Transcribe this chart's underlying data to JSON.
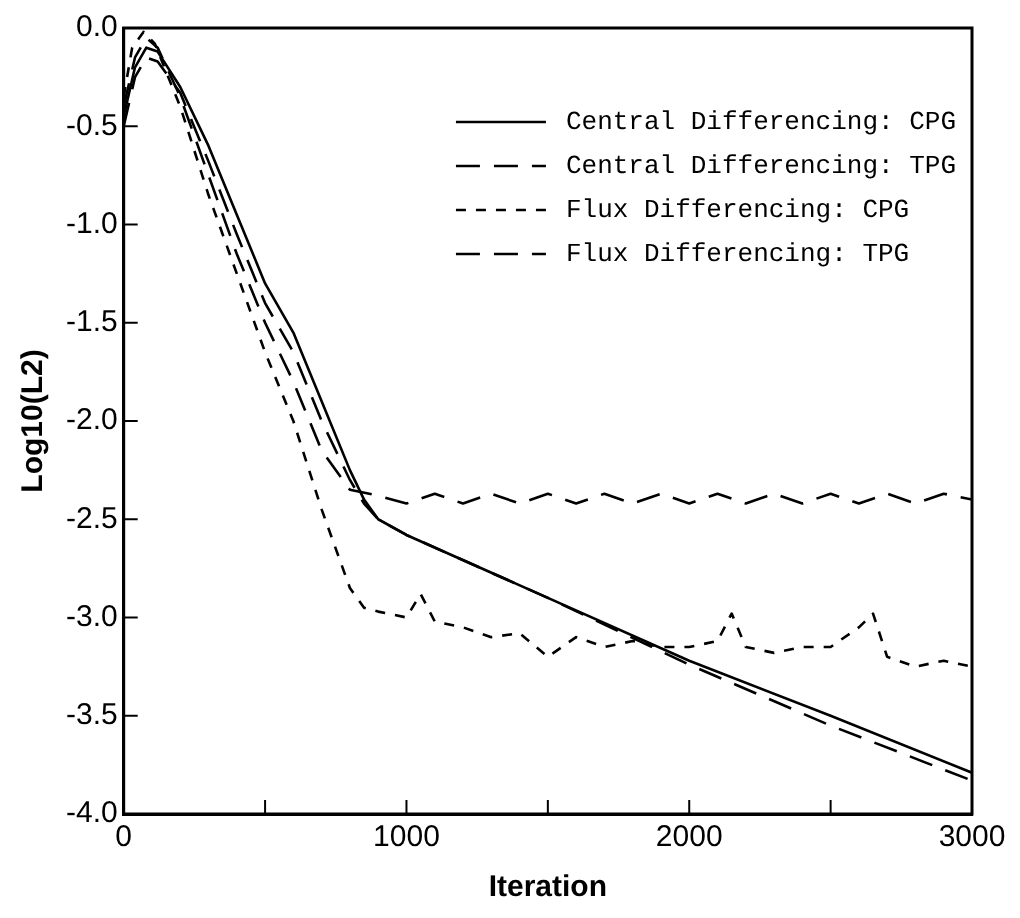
{
  "chart_data": {
    "type": "line",
    "xlabel": "Iteration",
    "ylabel": "Log10(L2)",
    "xlim": [
      0,
      3000
    ],
    "ylim": [
      -4,
      0
    ],
    "xticks": [
      0,
      {
        "value": 500,
        "label": null
      },
      1000,
      {
        "value": 1500,
        "label": null
      },
      2000,
      {
        "value": 2500,
        "label": null
      },
      3000
    ],
    "yticks": [
      {
        "value": -4,
        "label": "-4.0"
      },
      {
        "value": -3.5,
        "label": "-3.5"
      },
      {
        "value": -3,
        "label": "-3.0"
      },
      {
        "value": -2.5,
        "label": "-2.5"
      },
      {
        "value": -2,
        "label": "-2.0"
      },
      {
        "value": -1.5,
        "label": "-1.5"
      },
      {
        "value": -1,
        "label": "-1.0"
      },
      {
        "value": -0.5,
        "label": "-0.5"
      },
      {
        "value": 0,
        "label": "0.0"
      }
    ],
    "grid": false,
    "legend": "top right",
    "marker": "none",
    "series": [
      {
        "name": "Central Differencing: CPG",
        "color": "#000000",
        "line_style": "solid",
        "x": [
          0,
          40,
          80,
          120,
          200,
          300,
          400,
          500,
          600,
          700,
          800,
          850,
          900,
          1000,
          1500,
          2000,
          2500,
          3000
        ],
        "values": [
          -0.45,
          -0.2,
          -0.1,
          -0.12,
          -0.3,
          -0.6,
          -0.95,
          -1.3,
          -1.55,
          -1.9,
          -2.25,
          -2.4,
          -2.5,
          -2.58,
          -2.9,
          -3.22,
          -3.5,
          -3.79
        ]
      },
      {
        "name": "Central Differencing: TPG",
        "color": "#000000",
        "line_style": "dashed",
        "x": [
          0,
          40,
          80,
          120,
          200,
          300,
          400,
          500,
          600,
          700,
          800,
          850,
          900,
          1000,
          1500,
          2000,
          2500,
          3000
        ],
        "values": [
          -0.5,
          -0.25,
          -0.15,
          -0.17,
          -0.33,
          -0.68,
          -1.05,
          -1.4,
          -1.65,
          -2.0,
          -2.3,
          -2.42,
          -2.5,
          -2.58,
          -2.9,
          -3.24,
          -3.55,
          -3.83
        ]
      },
      {
        "name": "Flux Differencing: CPG",
        "color": "#000000",
        "line_style": "dotted",
        "x": [
          0,
          30,
          70,
          110,
          200,
          300,
          400,
          500,
          600,
          700,
          800,
          850,
          900,
          1000,
          1050,
          1100,
          1200,
          1300,
          1400,
          1500,
          1600,
          1700,
          1800,
          1900,
          2000,
          2100,
          2150,
          2200,
          2300,
          2400,
          2500,
          2600,
          2650,
          2700,
          2800,
          2900,
          3000
        ],
        "values": [
          -0.35,
          -0.1,
          -0.02,
          -0.08,
          -0.4,
          -0.85,
          -1.25,
          -1.65,
          -2.0,
          -2.45,
          -2.85,
          -2.95,
          -2.97,
          -3.0,
          -2.88,
          -3.02,
          -3.05,
          -3.1,
          -3.08,
          -3.2,
          -3.1,
          -3.15,
          -3.12,
          -3.15,
          -3.15,
          -3.12,
          -2.98,
          -3.15,
          -3.18,
          -3.15,
          -3.15,
          -3.05,
          -2.98,
          -3.2,
          -3.25,
          -3.22,
          -3.25
        ]
      },
      {
        "name": "Flux Differencing: TPG",
        "color": "#000000",
        "line_style": "dashed",
        "x": [
          0,
          40,
          80,
          120,
          200,
          300,
          400,
          500,
          600,
          700,
          800,
          900,
          1000,
          1100,
          1200,
          1300,
          1400,
          1500,
          1600,
          1700,
          1800,
          1900,
          2000,
          2100,
          2200,
          2300,
          2400,
          2500,
          2600,
          2700,
          2800,
          2900,
          3000
        ],
        "values": [
          -0.4,
          -0.15,
          -0.05,
          -0.1,
          -0.35,
          -0.75,
          -1.15,
          -1.5,
          -1.8,
          -2.15,
          -2.35,
          -2.38,
          -2.42,
          -2.37,
          -2.42,
          -2.37,
          -2.42,
          -2.37,
          -2.42,
          -2.37,
          -2.42,
          -2.37,
          -2.42,
          -2.37,
          -2.42,
          -2.37,
          -2.42,
          -2.37,
          -2.42,
          -2.37,
          -2.42,
          -2.37,
          -2.4
        ]
      }
    ]
  }
}
